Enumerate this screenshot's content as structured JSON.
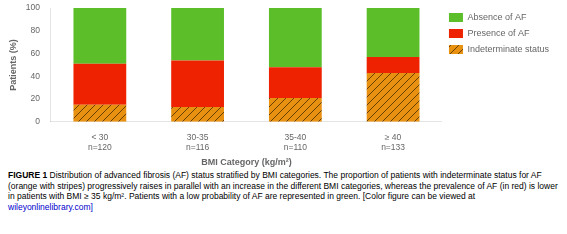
{
  "chart_data": {
    "type": "bar",
    "stacked": true,
    "categories": [
      "< 30\nn=120",
      "30-35\nn=116",
      "35-40\nn=110",
      "≥ 40\nn=133"
    ],
    "series": [
      {
        "name": "Indeterminate status",
        "color": "#E89010",
        "values": [
          15,
          13,
          21,
          43
        ]
      },
      {
        "name": "Presence of AF",
        "color": "#EE2200",
        "values": [
          36,
          41,
          27,
          14
        ]
      },
      {
        "name": "Absence of AF",
        "color": "#5CBF2A",
        "values": [
          49,
          46,
          52,
          43
        ]
      }
    ],
    "xlabel": "BMI Category (kg/m²)",
    "ylabel": "Patients (%)",
    "ylim": [
      0,
      100
    ],
    "yticks": [
      0,
      20,
      40,
      60,
      80,
      100
    ],
    "grid": false,
    "legend": "right",
    "annotations": [
      "FIGURE 1",
      "Distribution of advanced fibrosis (AF) status stratified by BMI categories. The proportion of patients with indeterminate status for AF (orange with stripes) progressively raises in parallel with an increase in the different BMI categories, whereas the prevalence of AF (in red) is lower in patients with BMI ≥ 35 kg/m². Patients with a low probability of AF are represented in green. [Color figure can be viewed at",
      "wileyonlinelibrary.com]"
    ]
  }
}
